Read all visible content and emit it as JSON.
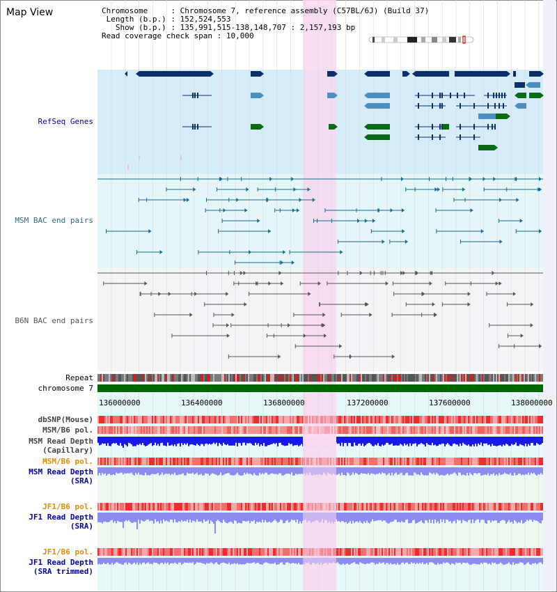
{
  "title": "Map View",
  "info": {
    "chromosome_key": "Chromosome",
    "chromosome_val": "Chromosome 7, reference assembly (C57BL/6J) (Build 37)",
    "length_key": "Length (b.p.)",
    "length_val": "152,524,553",
    "show_key": "Show (b.p.)",
    "show_val": "135,991,515-138,148,707 : 2,157,193 bp",
    "span_key": "Read coverage check span",
    "span_val": "10,000"
  },
  "tracks": {
    "refseq": "RefSeq Genes",
    "msm_bac": "MSM BAC end pairs",
    "b6n_bac": "B6N BAC end pairs",
    "repeat": "Repeat",
    "chromosome": "chromosome 7",
    "dbsnp": "dbSNP(Mouse)",
    "msm_b6_pol": "MSM/B6 pol.",
    "msm_read_depth_1": "MSM Read Depth",
    "msm_read_depth_1b": "(Capillary)",
    "msm_b6_pol_2": "MSM/B6 pol.",
    "msm_read_depth_2": "MSM Read Depth",
    "msm_read_depth_2b": "(SRA)",
    "jf1_b6_pol": "JF1/B6 pol.",
    "jf1_read_depth": "JF1 Read Depth",
    "jf1_read_depth_b": "(SRA)",
    "jf1_b6_pol_2": "JF1/B6 pol.",
    "jf1_read_depth_2": "JF1 Read Depth",
    "jf1_read_depth_2b": "(SRA trimmed)"
  },
  "axis_ticks": [
    "136000000",
    "136400000",
    "136800000",
    "137200000",
    "137600000",
    "138000000"
  ],
  "colors": {
    "refseq_bg": "#d6ecf8",
    "msm_bg": "#e4f6f8",
    "b6n_bg": "#f4f4f6",
    "highlight": "#f8d8f0",
    "refseq_dark": "#0c2f6a",
    "refseq_mid": "#4a8fbf",
    "refseq_green": "#0a6a16",
    "msm_line": "#1a6a8c",
    "b6n_line": "#555555",
    "chromosome_bar": "#006600",
    "depth_blue": "#1818e8",
    "depth_light": "#8c8cf0",
    "label_blue": "#0000aa",
    "label_orange": "#e08c00",
    "label_teal": "#2a6a8a"
  }
}
